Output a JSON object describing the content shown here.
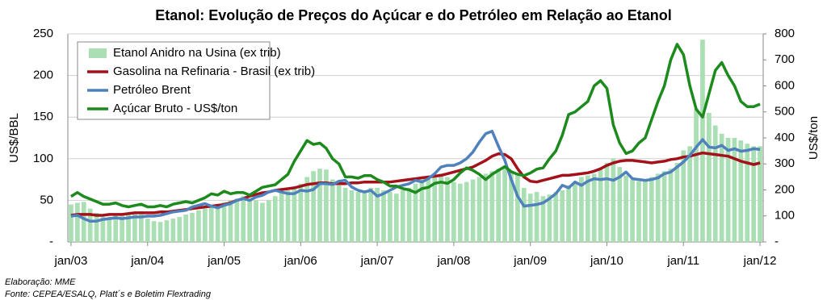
{
  "chart_data": {
    "type": "bar-line",
    "title": "Etanol: Evolução de Preços do Açúcar e do Petróleo em Relação ao Etanol",
    "y_label": "US$/BBL",
    "y2_label": "US$/ton",
    "notes": [
      "Elaboração: MME",
      "Fonte: CEPEA/ESALQ, Platt´s e Boletim Flextrading"
    ],
    "categories": [
      "jan/03",
      null,
      null,
      null,
      null,
      null,
      null,
      null,
      null,
      null,
      null,
      null,
      "jan/04",
      null,
      null,
      null,
      null,
      null,
      null,
      null,
      null,
      null,
      null,
      null,
      "jan/05",
      null,
      null,
      null,
      null,
      null,
      null,
      null,
      null,
      null,
      null,
      null,
      "jan/06",
      null,
      null,
      null,
      null,
      null,
      null,
      null,
      null,
      null,
      null,
      null,
      "jan/07",
      null,
      null,
      null,
      null,
      null,
      null,
      null,
      null,
      null,
      null,
      null,
      "jan/08",
      null,
      null,
      null,
      null,
      null,
      null,
      null,
      null,
      null,
      null,
      null,
      "jan/09",
      null,
      null,
      null,
      null,
      null,
      null,
      null,
      null,
      null,
      null,
      null,
      "jan/10",
      null,
      null,
      null,
      null,
      null,
      null,
      null,
      null,
      null,
      null,
      null,
      "jan/11",
      null,
      null,
      null,
      null,
      null,
      null,
      null,
      null,
      null,
      null,
      null,
      "jan/12"
    ],
    "ylim": [
      0,
      250
    ],
    "yticks": [
      {
        "value": 0,
        "label": "-"
      },
      50,
      100,
      150,
      200,
      250
    ],
    "y2lim": [
      0,
      800
    ],
    "y2ticks": [
      {
        "value": 0,
        "label": "-"
      },
      100,
      200,
      300,
      400,
      500,
      600,
      700,
      800
    ],
    "grid": true,
    "legend": "upper-left",
    "series": [
      {
        "name": "Etanol Anidro na Usina (ex trib)",
        "kind": "bar",
        "color": "#a9dfb2",
        "values": [
          45,
          47,
          48,
          40,
          35,
          30,
          30,
          32,
          32,
          33,
          35,
          37,
          28,
          25,
          24,
          26,
          28,
          30,
          33,
          35,
          38,
          40,
          42,
          45,
          48,
          50,
          52,
          55,
          52,
          50,
          47,
          50,
          55,
          60,
          62,
          65,
          70,
          78,
          85,
          88,
          87,
          75,
          68,
          65,
          62,
          60,
          62,
          65,
          65,
          62,
          60,
          58,
          62,
          65,
          70,
          75,
          78,
          80,
          82,
          78,
          72,
          70,
          72,
          75,
          78,
          82,
          85,
          88,
          90,
          85,
          80,
          65,
          58,
          60,
          55,
          57,
          60,
          62,
          68,
          72,
          78,
          80,
          82,
          88,
          95,
          100,
          90,
          80,
          75,
          73,
          75,
          78,
          82,
          85,
          88,
          95,
          110,
          115,
          160,
          243,
          155,
          140,
          130,
          125,
          125,
          122,
          118,
          115,
          115
        ]
      },
      {
        "name": "Gasolina na Refinaria - Brasil (ex trib)",
        "kind": "line",
        "color": "#a3121a",
        "values": [
          32,
          33,
          33,
          33,
          32,
          32,
          33,
          33,
          33,
          34,
          35,
          35,
          35,
          35,
          36,
          36,
          37,
          38,
          39,
          40,
          41,
          42,
          43,
          44,
          45,
          47,
          50,
          52,
          55,
          57,
          59,
          60,
          62,
          63,
          64,
          65,
          67,
          69,
          70,
          71,
          71,
          70,
          70,
          70,
          71,
          71,
          72,
          72,
          72,
          72,
          72,
          73,
          74,
          75,
          76,
          77,
          78,
          79,
          80,
          82,
          84,
          86,
          88,
          90,
          94,
          98,
          103,
          106,
          105,
          100,
          88,
          78,
          73,
          72,
          74,
          76,
          78,
          80,
          80,
          81,
          82,
          83,
          85,
          88,
          92,
          95,
          97,
          98,
          98,
          97,
          96,
          95,
          96,
          97,
          99,
          100,
          102,
          103,
          105,
          107,
          106,
          105,
          104,
          103,
          100,
          97,
          95,
          93,
          95
        ]
      },
      {
        "name": "Petróleo Brent",
        "kind": "line",
        "color": "#4f81bd",
        "values": [
          31,
          32,
          28,
          25,
          25,
          27,
          28,
          29,
          28,
          29,
          30,
          30,
          31,
          31,
          32,
          34,
          36,
          37,
          38,
          42,
          44,
          46,
          43,
          41,
          44,
          46,
          50,
          52,
          50,
          54,
          56,
          60,
          62,
          60,
          58,
          58,
          62,
          61,
          63,
          70,
          70,
          69,
          73,
          74,
          66,
          62,
          60,
          62,
          55,
          58,
          62,
          66,
          68,
          70,
          74,
          72,
          76,
          82,
          90,
          92,
          92,
          95,
          100,
          108,
          120,
          130,
          133,
          115,
          98,
          75,
          55,
          43,
          44,
          45,
          47,
          52,
          58,
          68,
          65,
          72,
          68,
          73,
          76,
          75,
          76,
          74,
          78,
          84,
          76,
          75,
          74,
          75,
          77,
          82,
          84,
          90,
          96,
          104,
          114,
          123,
          114,
          113,
          116,
          110,
          112,
          109,
          110,
          112,
          111
        ]
      },
      {
        "name": "Açúcar Bruto - US$/ton",
        "kind": "line",
        "axis": "y2",
        "color": "#1d8a1d",
        "values": [
          175,
          190,
          175,
          165,
          155,
          145,
          145,
          150,
          140,
          135,
          140,
          145,
          135,
          135,
          140,
          135,
          145,
          150,
          155,
          150,
          160,
          170,
          185,
          180,
          195,
          185,
          190,
          190,
          180,
          195,
          210,
          215,
          220,
          240,
          260,
          310,
          350,
          390,
          375,
          380,
          360,
          320,
          300,
          250,
          250,
          245,
          255,
          255,
          240,
          230,
          215,
          215,
          205,
          200,
          190,
          205,
          210,
          225,
          230,
          225,
          240,
          265,
          285,
          275,
          260,
          240,
          260,
          275,
          290,
          270,
          260,
          255,
          265,
          280,
          285,
          320,
          350,
          410,
          490,
          500,
          520,
          540,
          600,
          620,
          590,
          450,
          380,
          340,
          350,
          380,
          400,
          470,
          540,
          600,
          700,
          760,
          720,
          600,
          510,
          480,
          570,
          660,
          690,
          640,
          600,
          540,
          520,
          520,
          530
        ]
      }
    ]
  }
}
